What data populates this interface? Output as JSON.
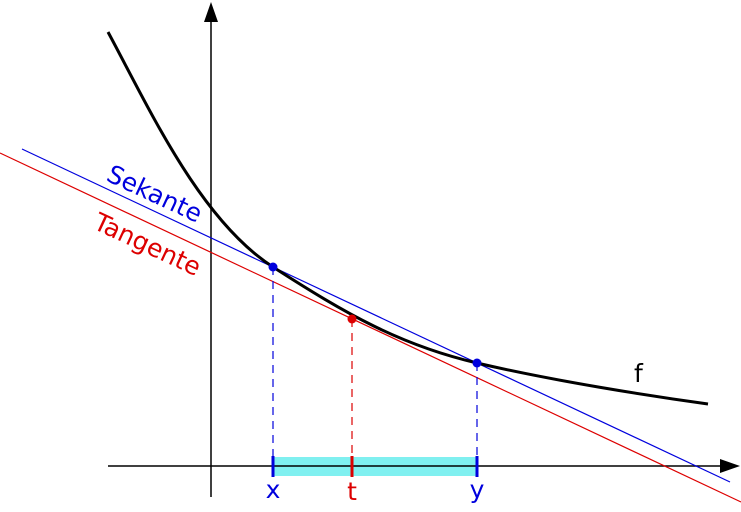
{
  "labels": {
    "secant": "Sekante",
    "tangent": "Tangente",
    "function": "f",
    "x": "x",
    "t": "t",
    "y": "y"
  }
}
